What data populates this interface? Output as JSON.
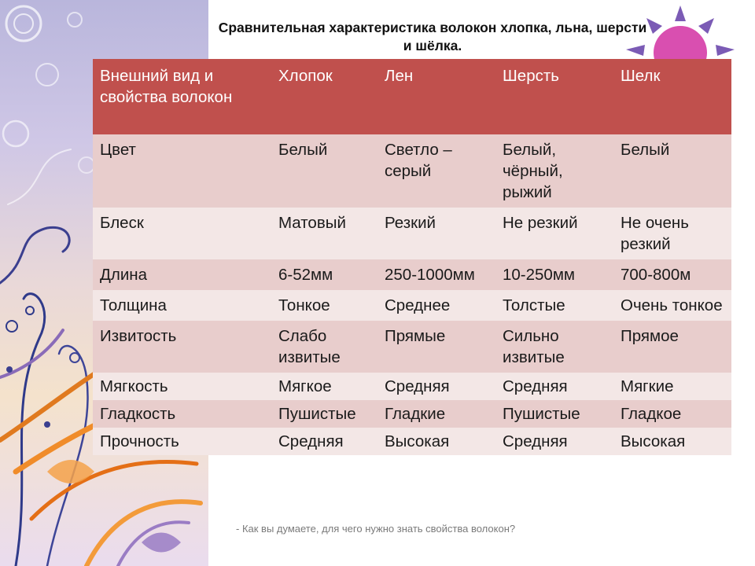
{
  "title": "Сравнительная характеристика волокон хлопка, льна, шерсти и шёлка.",
  "table": {
    "headers": [
      "Внешний вид и свойства волокон",
      "Хлопок",
      "Лен",
      "Шерсть",
      "Шелк"
    ],
    "rows": [
      [
        "Цвет",
        "Белый",
        "Светло – серый",
        "Белый, чёрный, рыжий",
        "Белый"
      ],
      [
        "Блеск",
        "Матовый",
        "Резкий",
        "Не резкий",
        "Не очень резкий"
      ],
      [
        "Длина",
        "6-52мм",
        "250-1000мм",
        "10-250мм",
        "700-800м"
      ],
      [
        "Толщина",
        "Тонкое",
        "Среднее",
        "Толстые",
        "Очень тонкое"
      ],
      [
        "Извитость",
        "Слабо извитые",
        "Прямые",
        "Сильно извитые",
        "Прямое"
      ],
      [
        "Мягкость",
        "Мягкое",
        "Средняя",
        "Средняя",
        "Мягкие"
      ],
      [
        "Гладкость",
        "Пушистые",
        "Гладкие",
        "Пушистые",
        "Гладкое"
      ],
      [
        "Прочность",
        "Средняя",
        "Высокая",
        "Средняя",
        "Высокая"
      ]
    ]
  },
  "footer_note": "- Как вы думаете, для чего нужно знать свойства волокон?",
  "colors": {
    "header_bg": "#c0504d",
    "row_odd": "#e8cdcc",
    "row_even": "#f3e7e6",
    "sun_fill": "#d94fb0",
    "sun_rays": "#7b5bb5"
  },
  "icons": {
    "decor": "floral-swirl-decoration",
    "sun": "sun-icon"
  }
}
